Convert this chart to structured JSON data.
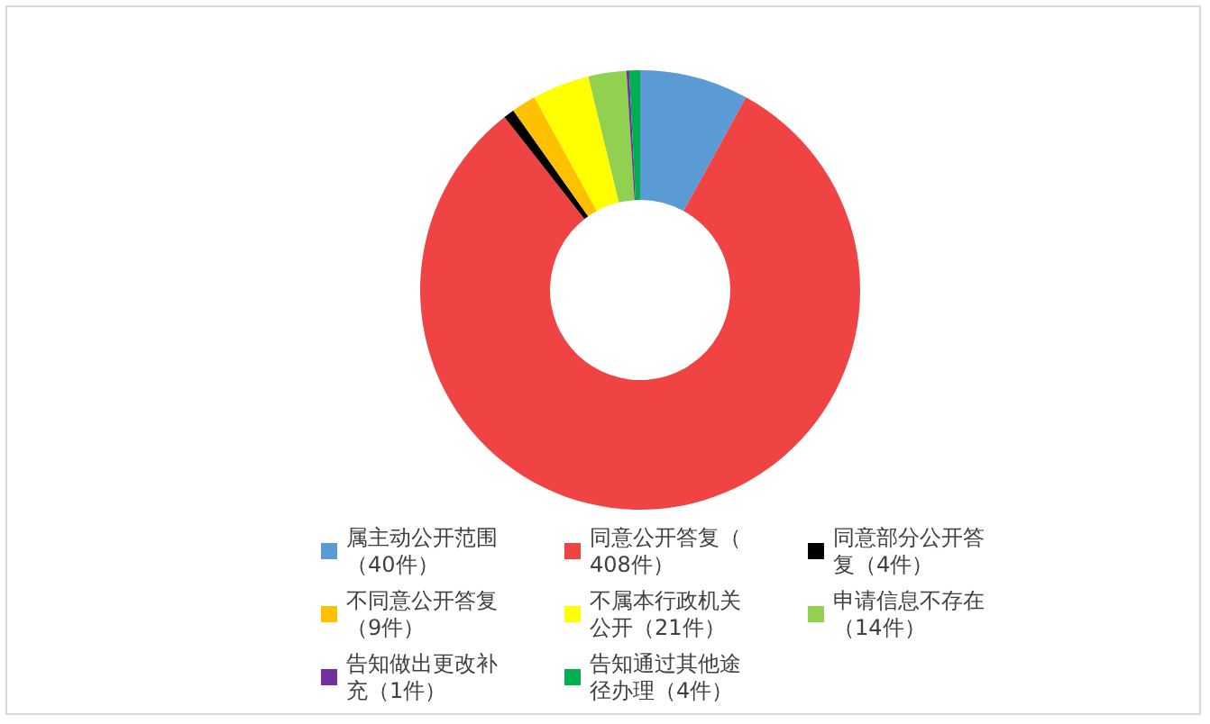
{
  "chart_data": {
    "type": "donut",
    "categories": [
      "属主动公开范围（40件）",
      "同意公开答复（408件）",
      "同意部分公开答复（4件）",
      "不同意公开答复（9件）",
      "不属本行政机关公开（21件）",
      "申请信息不存在（14件）",
      "告知做出更改补充（1件）",
      "告知通过其他途径办理（4件）"
    ],
    "values": [
      40,
      408,
      4,
      9,
      21,
      14,
      1,
      4
    ],
    "colors": [
      "#5b9bd5",
      "#f04444",
      "#000000",
      "#ffc000",
      "#ffff00",
      "#92d050",
      "#7030a0",
      "#00b050"
    ],
    "legend": "bottom"
  }
}
